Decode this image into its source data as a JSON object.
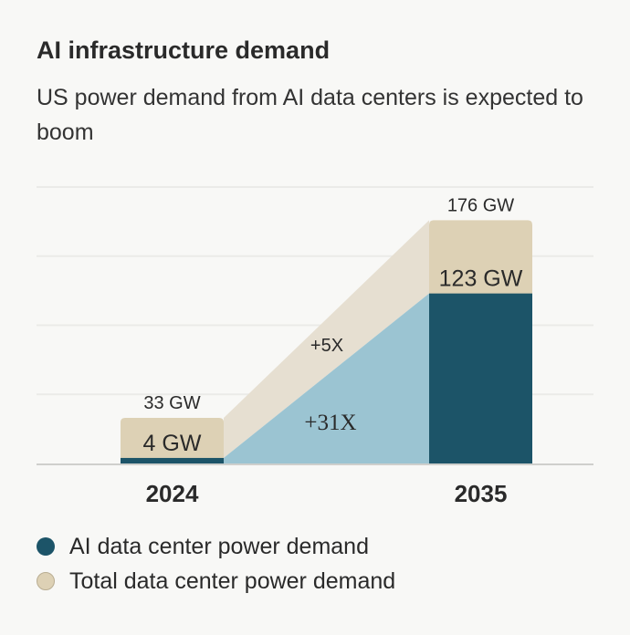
{
  "chart_data": {
    "type": "bar",
    "title": "AI infrastructure demand",
    "subtitle": "US power demand from AI data centers is expected to boom",
    "categories": [
      "2024",
      "2035"
    ],
    "series": [
      {
        "name": "AI data center power demand",
        "values": [
          4,
          123
        ],
        "labels": [
          "4 GW",
          "123 GW"
        ],
        "color": "#1c5468"
      },
      {
        "name": "Total data center power demand",
        "values": [
          33,
          176
        ],
        "labels": [
          "33 GW",
          "176 GW"
        ],
        "color": "#ddd1b5"
      }
    ],
    "annotations": [
      {
        "text": "+5X",
        "series": "Total data center power demand",
        "color": "#e6dfd1"
      },
      {
        "text": "+31X",
        "series": "AI data center power demand",
        "color": "#9bc4d2"
      }
    ],
    "ylim": [
      0,
      200
    ],
    "grid": true,
    "legend_position": "bottom-left"
  }
}
